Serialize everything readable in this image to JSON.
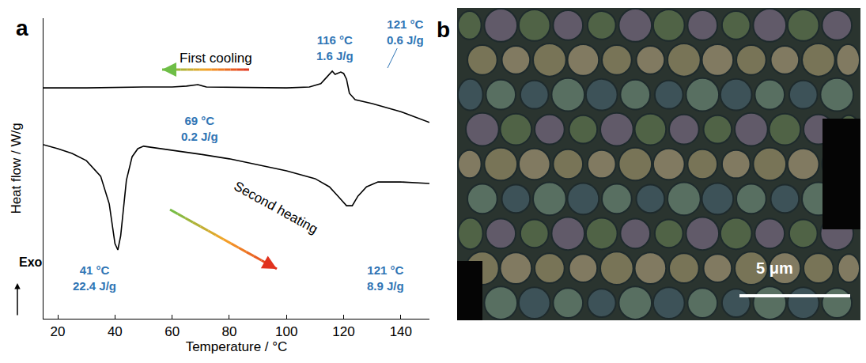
{
  "chart_data": {
    "type": "line",
    "panel_label": "a",
    "xlabel": "Temperature / °C",
    "ylabel": "Heat flow / W/g",
    "xlim": [
      15,
      150
    ],
    "xticks": [
      20,
      40,
      60,
      80,
      100,
      120,
      140
    ],
    "ylim": [
      0,
      100
    ],
    "tick_labels": "x",
    "grid": false,
    "exo_label": "Exo",
    "series": [
      {
        "name": "First cooling",
        "color": "#000000",
        "x": [
          15,
          30,
          50,
          60,
          65,
          69,
          72,
          90,
          100,
          108,
          112,
          114,
          116,
          117,
          118,
          119,
          120,
          121,
          122,
          124,
          130,
          140,
          150
        ],
        "values": [
          76.8,
          76.8,
          77.1,
          77.1,
          77.4,
          77.9,
          77.1,
          76.8,
          76.8,
          77.1,
          78.2,
          80.3,
          82.4,
          81.3,
          81.6,
          82.1,
          81.6,
          79.7,
          75.0,
          72.9,
          71.6,
          68.9,
          65.3
        ]
      },
      {
        "name": "Second heating",
        "color": "#000000",
        "x": [
          15,
          20,
          25,
          30,
          35,
          38,
          40,
          41,
          42,
          44,
          46,
          48,
          50,
          60,
          70,
          80,
          90,
          100,
          110,
          115,
          118,
          121,
          123,
          125,
          128,
          132,
          140,
          150
        ],
        "values": [
          57.9,
          56.6,
          55.0,
          52.6,
          47.4,
          38.2,
          25.0,
          22.9,
          27.6,
          46.1,
          53.9,
          56.6,
          57.4,
          56.1,
          54.7,
          53.2,
          51.3,
          49.2,
          46.6,
          43.9,
          40.8,
          37.6,
          37.6,
          40.8,
          43.9,
          45.5,
          45.5,
          45.0
        ]
      }
    ],
    "annotations": [
      {
        "temperature": "69 °C",
        "enthalpy": "0.2 J/g"
      },
      {
        "temperature": "116 °C",
        "enthalpy": "1.6 J/g"
      },
      {
        "temperature": "121 °C",
        "enthalpy": "0.6 J/g"
      },
      {
        "temperature": "41 °C",
        "enthalpy": "22.4 J/g"
      },
      {
        "temperature": "121 °C",
        "enthalpy": "8.9 J/g"
      }
    ]
  },
  "image_panel": {
    "panel_label": "b",
    "scale_bar": "5 μm"
  }
}
